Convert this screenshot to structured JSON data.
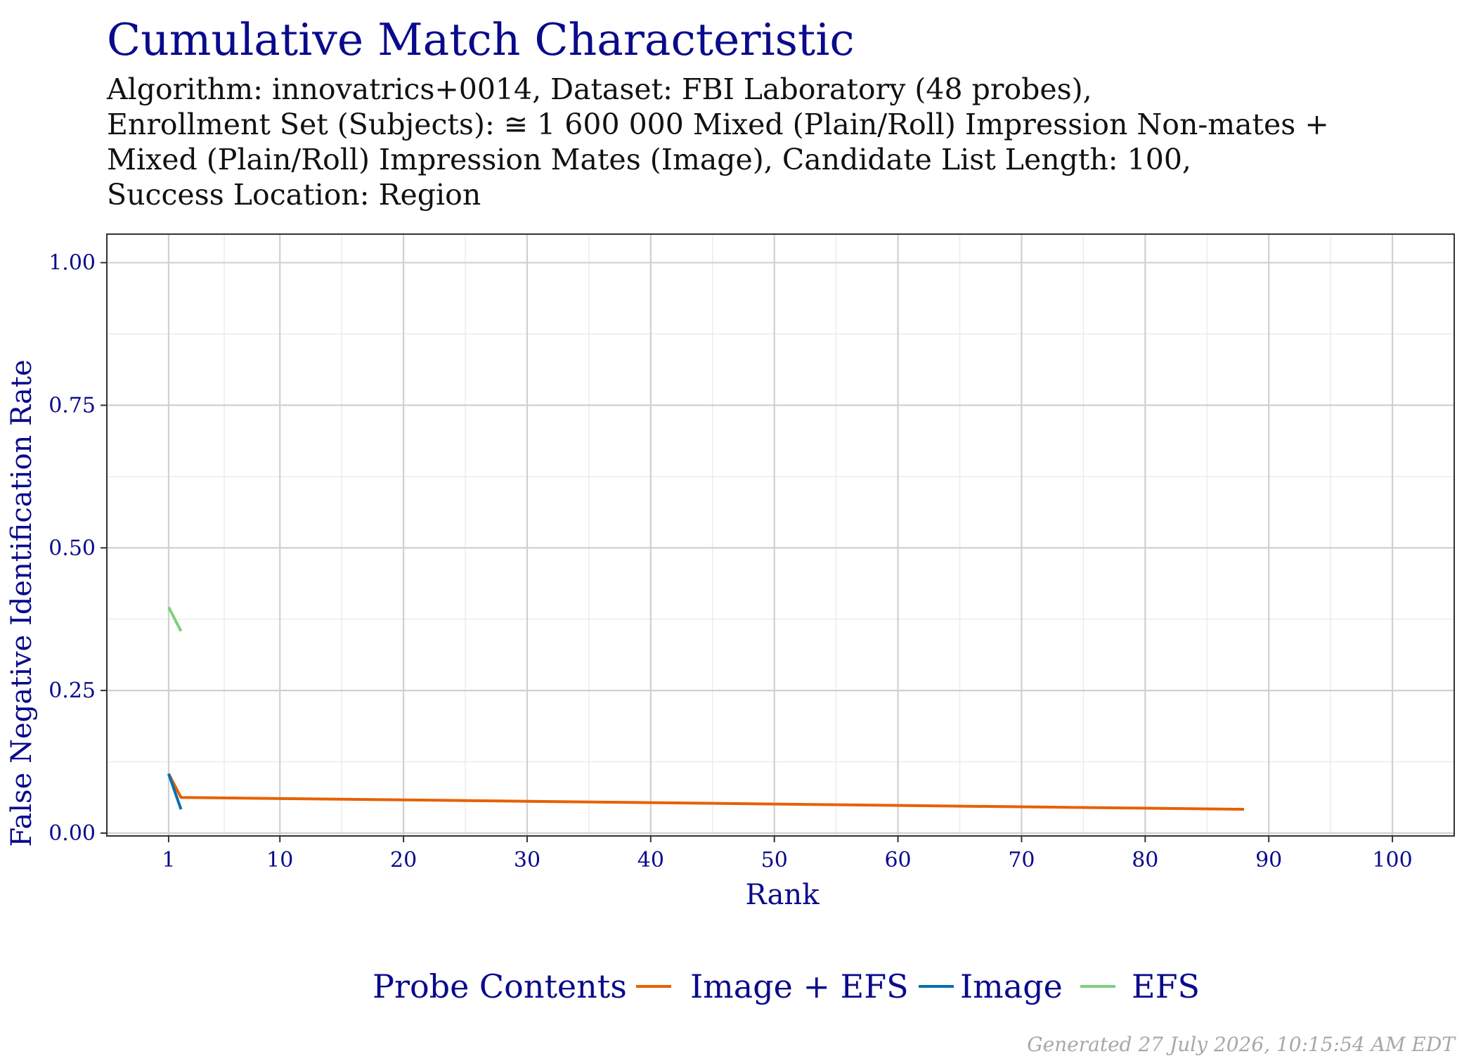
{
  "chart_data": {
    "type": "line",
    "title": "Cumulative Match Characteristic",
    "subtitle_lines": [
      "Algorithm: innovatrics+0014, Dataset: FBI Laboratory (48 probes),",
      "Enrollment Set (Subjects): ≅ 1 600 000 Mixed (Plain/Roll) Impression Non-mates +",
      "Mixed (Plain/Roll) Impression Mates (Image), Candidate List Length: 100,",
      "Success Location: Region"
    ],
    "xlabel": "Rank",
    "ylabel": "False Negative Identification Rate",
    "xlim": [
      -4,
      105
    ],
    "ylim": [
      -0.005,
      1.05
    ],
    "x_ticks": [
      1,
      10,
      20,
      30,
      40,
      50,
      60,
      70,
      80,
      90,
      100
    ],
    "x_tick_labels": [
      "1",
      "10",
      "20",
      "30",
      "40",
      "50",
      "60",
      "70",
      "80",
      "90",
      "100"
    ],
    "y_ticks": [
      0,
      0.25,
      0.5,
      0.75,
      1
    ],
    "y_tick_labels": [
      "0.00",
      "0.25",
      "0.50",
      "0.75",
      "1.00"
    ],
    "grid": true,
    "legend_title": "Probe Contents",
    "legend_position": "bottom",
    "series": [
      {
        "name": "Image + EFS",
        "color": "#e66101",
        "x": [
          1,
          2,
          88
        ],
        "y": [
          0.104,
          0.0625,
          0.0417
        ]
      },
      {
        "name": "Image",
        "color": "#0571b0",
        "x": [
          1,
          2
        ],
        "y": [
          0.104,
          0.0417
        ]
      },
      {
        "name": "EFS",
        "color": "#7fcf7f",
        "x": [
          1,
          2
        ],
        "y": [
          0.396,
          0.354
        ]
      }
    ]
  },
  "footer": "Generated 27 July 2026, 10:15:54 AM EDT",
  "colors": {
    "title": "#0a0a8c",
    "axis_text": "#0a0a8c",
    "panel_border": "#333333",
    "grid_major": "#d0d0d0",
    "grid_minor": "#ececec"
  }
}
